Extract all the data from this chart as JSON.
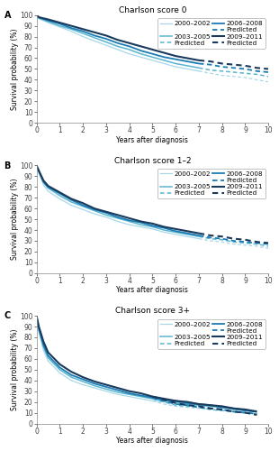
{
  "panels": [
    {
      "label": "A",
      "title": "Charlson score 0",
      "xlim": [
        0,
        10
      ],
      "ylim": [
        0,
        100
      ],
      "xticks": [
        0,
        1,
        2,
        3,
        4,
        5,
        6,
        7,
        8,
        9,
        10
      ],
      "yticks": [
        0,
        10,
        20,
        30,
        40,
        50,
        60,
        70,
        80,
        90,
        100
      ],
      "series": [
        {
          "period": "2000–2002",
          "color": "#a8d8e8",
          "lw": 0.9,
          "obs_x": [
            0,
            0.1,
            0.5,
            1,
            1.5,
            2,
            2.5,
            3,
            3.5,
            4,
            4.5,
            5,
            5.5,
            6,
            6.5,
            7
          ],
          "obs_y": [
            100,
            97,
            93,
            89,
            85,
            80,
            76,
            72,
            68,
            64,
            61,
            58,
            55,
            52,
            50,
            48
          ],
          "pred_x": [
            7,
            7.5,
            8,
            8.5,
            9,
            9.5,
            10
          ],
          "pred_y": [
            48,
            46,
            44,
            43,
            42,
            40,
            38
          ]
        },
        {
          "period": "2003–2005",
          "color": "#5ab4d0",
          "lw": 1.1,
          "obs_x": [
            0,
            0.1,
            0.5,
            1,
            1.5,
            2,
            2.5,
            3,
            3.5,
            4,
            4.5,
            5,
            5.5,
            6,
            6.5,
            7
          ],
          "obs_y": [
            100,
            97,
            94,
            90,
            87,
            83,
            79,
            75,
            71,
            68,
            64,
            61,
            58,
            55,
            53,
            51
          ],
          "pred_x": [
            7,
            7.5,
            8,
            8.5,
            9,
            9.5,
            10
          ],
          "pred_y": [
            51,
            49,
            48,
            47,
            46,
            45,
            43
          ]
        },
        {
          "period": "2006–2008",
          "color": "#1a7cb5",
          "lw": 1.3,
          "obs_x": [
            0,
            0.1,
            0.5,
            1,
            1.5,
            2,
            2.5,
            3,
            3.5,
            4,
            4.5,
            5,
            5.5,
            6,
            6.5,
            7
          ],
          "obs_y": [
            100,
            98,
            95,
            92,
            88,
            85,
            81,
            78,
            74,
            71,
            67,
            64,
            61,
            59,
            57,
            55
          ],
          "pred_x": [
            7,
            7.5,
            8,
            8.5,
            9,
            9.5,
            10
          ],
          "pred_y": [
            55,
            54,
            52,
            51,
            50,
            48,
            47
          ]
        },
        {
          "period": "2009–2011",
          "color": "#1a3a5c",
          "lw": 1.5,
          "obs_x": [
            0,
            0.1,
            0.5,
            1,
            1.5,
            2,
            2.5,
            3,
            3.5,
            4,
            4.5,
            5,
            5.5,
            6,
            6.5,
            7
          ],
          "obs_y": [
            100,
            98,
            96,
            93,
            90,
            87,
            84,
            81,
            77,
            74,
            71,
            68,
            65,
            62,
            60,
            58
          ],
          "pred_x": [
            7,
            7.5,
            8,
            8.5,
            9,
            9.5,
            10
          ],
          "pred_y": [
            58,
            57,
            55,
            54,
            53,
            51,
            50
          ]
        }
      ]
    },
    {
      "label": "B",
      "title": "Charlson score 1–2",
      "xlim": [
        0,
        10
      ],
      "ylim": [
        0,
        100
      ],
      "xticks": [
        0,
        1,
        2,
        3,
        4,
        5,
        6,
        7,
        8,
        9,
        10
      ],
      "yticks": [
        0,
        10,
        20,
        30,
        40,
        50,
        60,
        70,
        80,
        90,
        100
      ],
      "series": [
        {
          "period": "2000–2002",
          "color": "#a8d8e8",
          "lw": 0.9,
          "obs_x": [
            0,
            0.1,
            0.3,
            0.5,
            1,
            1.5,
            2,
            2.5,
            3,
            3.5,
            4,
            4.5,
            5,
            5.5,
            6,
            6.5,
            7
          ],
          "obs_y": [
            100,
            93,
            82,
            76,
            69,
            63,
            59,
            55,
            52,
            48,
            45,
            43,
            41,
            38,
            36,
            34,
            32
          ],
          "pred_x": [
            7,
            7.5,
            8,
            8.5,
            9,
            9.5,
            10
          ],
          "pred_y": [
            32,
            30,
            29,
            27,
            26,
            25,
            23
          ]
        },
        {
          "period": "2003–2005",
          "color": "#5ab4d0",
          "lw": 1.1,
          "obs_x": [
            0,
            0.1,
            0.3,
            0.5,
            1,
            1.5,
            2,
            2.5,
            3,
            3.5,
            4,
            4.5,
            5,
            5.5,
            6,
            6.5,
            7
          ],
          "obs_y": [
            100,
            94,
            84,
            79,
            72,
            66,
            62,
            58,
            54,
            51,
            48,
            45,
            43,
            40,
            38,
            36,
            34
          ],
          "pred_x": [
            7,
            7.5,
            8,
            8.5,
            9,
            9.5,
            10
          ],
          "pred_y": [
            34,
            32,
            31,
            29,
            28,
            27,
            25
          ]
        },
        {
          "period": "2006–2008",
          "color": "#1a7cb5",
          "lw": 1.3,
          "obs_x": [
            0,
            0.1,
            0.3,
            0.5,
            1,
            1.5,
            2,
            2.5,
            3,
            3.5,
            4,
            4.5,
            5,
            5.5,
            6,
            6.5,
            7
          ],
          "obs_y": [
            100,
            95,
            85,
            80,
            74,
            68,
            63,
            59,
            56,
            52,
            49,
            47,
            44,
            42,
            39,
            37,
            35
          ],
          "pred_x": [
            7,
            7.5,
            8,
            8.5,
            9,
            9.5,
            10
          ],
          "pred_y": [
            35,
            33,
            32,
            30,
            29,
            28,
            27
          ]
        },
        {
          "period": "2009–2011",
          "color": "#1a3a5c",
          "lw": 1.5,
          "obs_x": [
            0,
            0.1,
            0.3,
            0.5,
            1,
            1.5,
            2,
            2.5,
            3,
            3.5,
            4,
            4.5,
            5,
            5.5,
            6,
            6.5,
            7
          ],
          "obs_y": [
            100,
            95,
            86,
            81,
            75,
            69,
            65,
            60,
            57,
            54,
            51,
            48,
            46,
            43,
            41,
            39,
            37
          ],
          "pred_x": [
            7,
            7.5,
            8,
            8.5,
            9,
            9.5,
            10
          ],
          "pred_y": [
            37,
            35,
            34,
            32,
            31,
            29,
            28
          ]
        }
      ]
    },
    {
      "label": "C",
      "title": "Charlson score 3+",
      "xlim": [
        0,
        10
      ],
      "ylim": [
        0,
        100
      ],
      "xticks": [
        0,
        1,
        2,
        3,
        4,
        5,
        6,
        7,
        8,
        9,
        10
      ],
      "yticks": [
        0,
        10,
        20,
        30,
        40,
        50,
        60,
        70,
        80,
        90,
        100
      ],
      "series": [
        {
          "period": "2000–2002",
          "color": "#a8d8e8",
          "lw": 0.9,
          "obs_x": [
            0,
            0.1,
            0.3,
            0.5,
            1,
            1.5,
            2,
            2.5,
            3,
            3.5,
            4,
            4.5,
            5,
            5.5,
            6,
            6.5,
            7,
            7.5,
            8,
            8.5,
            9,
            9.5
          ],
          "obs_y": [
            100,
            85,
            68,
            58,
            47,
            40,
            36,
            33,
            30,
            27,
            25,
            23,
            21,
            20,
            19,
            18,
            17,
            16,
            15,
            14,
            13,
            12
          ],
          "pred_x": [
            5,
            5.5,
            6,
            6.5,
            7,
            7.5,
            8,
            8.5,
            9,
            9.5
          ],
          "pred_y": [
            21,
            18,
            16,
            15,
            14,
            13,
            12,
            11,
            10,
            9
          ]
        },
        {
          "period": "2003–2005",
          "color": "#5ab4d0",
          "lw": 1.1,
          "obs_x": [
            0,
            0.1,
            0.3,
            0.5,
            1,
            1.5,
            2,
            2.5,
            3,
            3.5,
            4,
            4.5,
            5,
            5.5,
            6,
            6.5,
            7,
            7.5,
            8,
            8.5,
            9,
            9.5
          ],
          "obs_y": [
            100,
            87,
            71,
            61,
            50,
            43,
            39,
            35,
            32,
            29,
            27,
            25,
            23,
            21,
            20,
            18,
            17,
            16,
            15,
            13,
            12,
            11
          ],
          "pred_x": [
            5,
            5.5,
            6,
            6.5,
            7,
            7.5,
            8,
            8.5,
            9,
            9.5
          ],
          "pred_y": [
            23,
            20,
            17,
            16,
            15,
            13,
            12,
            11,
            10,
            9
          ]
        },
        {
          "period": "2006–2008",
          "color": "#1a7cb5",
          "lw": 1.3,
          "obs_x": [
            0,
            0.1,
            0.3,
            0.5,
            1,
            1.5,
            2,
            2.5,
            3,
            3.5,
            4,
            4.5,
            5,
            5.5,
            6,
            6.5,
            7,
            7.5,
            8,
            8.5,
            9,
            9.5
          ],
          "obs_y": [
            100,
            88,
            73,
            63,
            52,
            45,
            41,
            37,
            34,
            31,
            28,
            26,
            24,
            22,
            21,
            19,
            18,
            17,
            15,
            14,
            12,
            11
          ],
          "pred_x": [
            5,
            5.5,
            6,
            6.5,
            7,
            7.5,
            8,
            8.5,
            9,
            9.5
          ],
          "pred_y": [
            24,
            21,
            18,
            17,
            15,
            14,
            13,
            11,
            10,
            9
          ]
        },
        {
          "period": "2009–2011",
          "color": "#1a3a5c",
          "lw": 1.5,
          "obs_x": [
            0,
            0.1,
            0.3,
            0.5,
            1,
            1.5,
            2,
            2.5,
            3,
            3.5,
            4,
            4.5,
            5,
            5.5,
            6,
            6.5,
            7,
            7.5,
            8,
            8.5,
            9,
            9.5
          ],
          "obs_y": [
            100,
            90,
            76,
            66,
            55,
            48,
            43,
            39,
            36,
            33,
            30,
            28,
            25,
            23,
            21,
            20,
            18,
            17,
            16,
            14,
            13,
            11
          ],
          "pred_x": [
            5,
            5.5,
            6,
            6.5,
            7,
            7.5,
            8,
            8.5,
            9,
            9.5
          ],
          "pred_y": [
            25,
            22,
            19,
            17,
            16,
            14,
            13,
            11,
            10,
            8
          ]
        }
      ]
    }
  ],
  "ylabel": "Survival probability (%)",
  "xlabel": "Years after diagnosis",
  "legend_periods": [
    "2000–2002",
    "2003–2005",
    "2006–2008",
    "2009–2011"
  ],
  "legend_colors": [
    "#a8d8e8",
    "#5ab4d0",
    "#1a7cb5",
    "#1a3a5c"
  ],
  "legend_lws": [
    0.9,
    1.1,
    1.3,
    1.5
  ],
  "fontsize": 5.5,
  "title_fontsize": 6.5
}
